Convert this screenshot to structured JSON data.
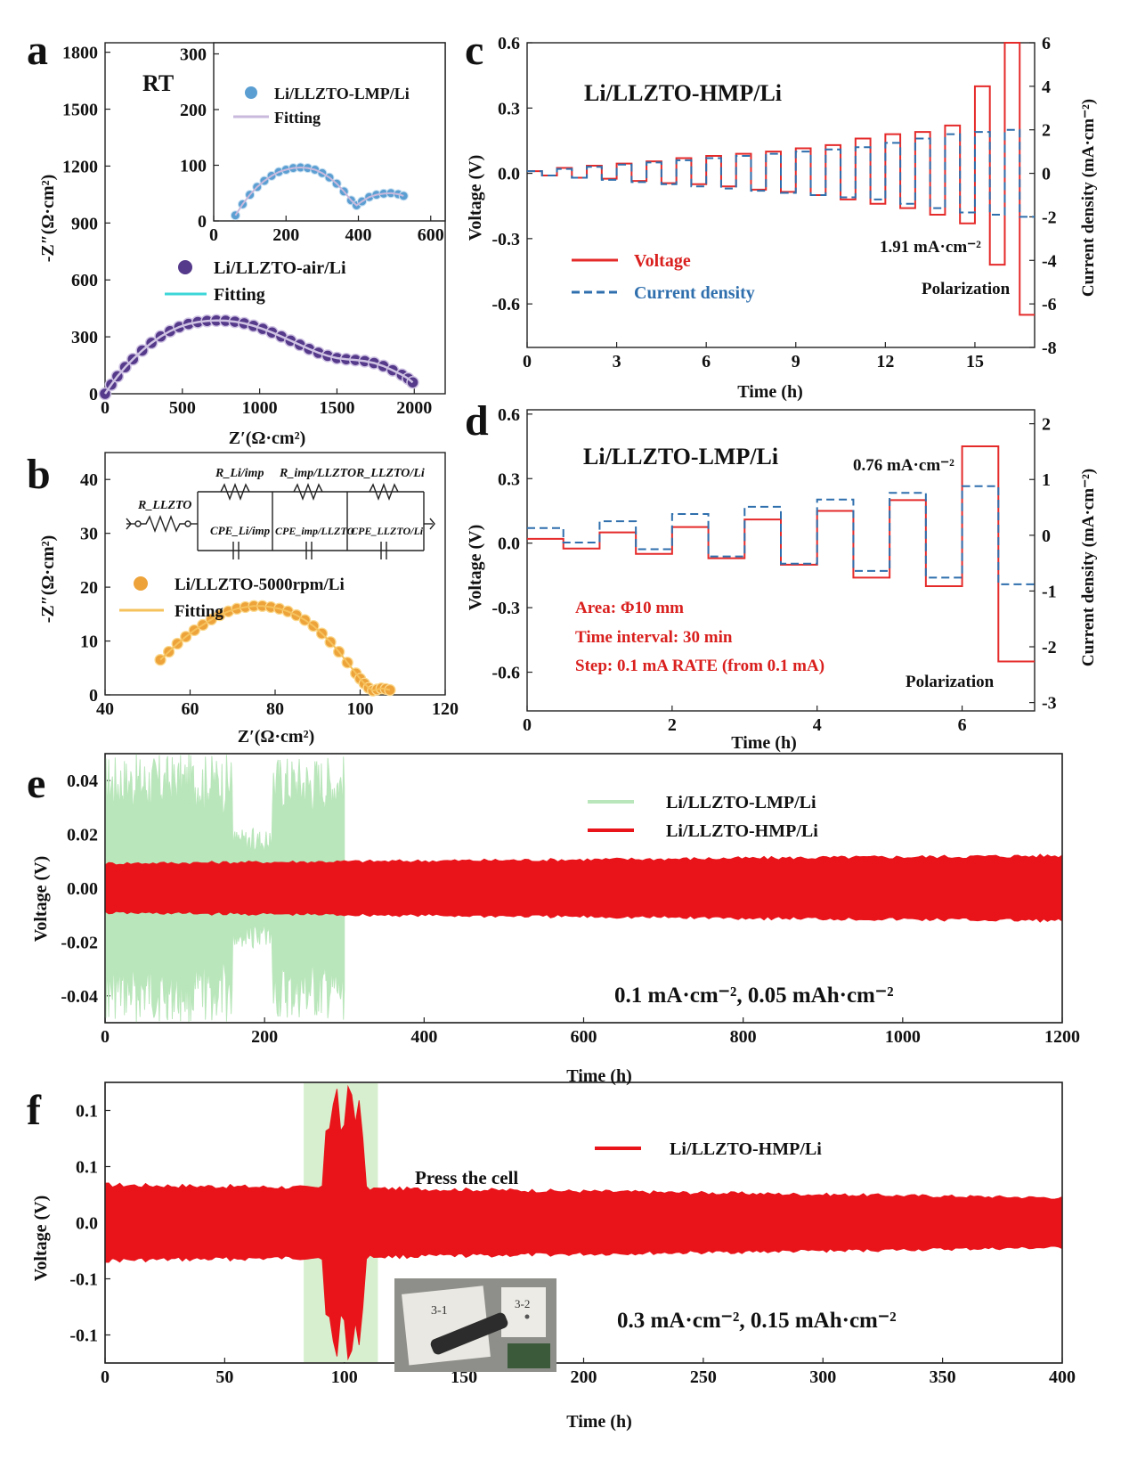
{
  "chart_data": [
    {
      "id": "a",
      "panel_label": "a",
      "type": "scatter",
      "xlabel": "Z′(Ω·cm²)",
      "ylabel": "-Z″(Ω·cm²)",
      "xlim": [
        0,
        2200
      ],
      "ylim": [
        0,
        1850
      ],
      "xticks": [
        0,
        500,
        1000,
        1500,
        2000
      ],
      "yticks": [
        0,
        300,
        600,
        900,
        1200,
        1500,
        1800
      ],
      "annotations": [
        "RT"
      ],
      "series": [
        {
          "name": "Li/LLZTO-air/Li",
          "kind": "points",
          "color": "#55398a",
          "x": [
            0,
            40,
            80,
            130,
            180,
            240,
            300,
            360,
            420,
            480,
            540,
            600,
            660,
            720,
            780,
            840,
            900,
            960,
            1020,
            1080,
            1140,
            1200,
            1260,
            1320,
            1380,
            1440,
            1500,
            1560,
            1620,
            1680,
            1740,
            1800,
            1860,
            1920,
            1960,
            1990
          ],
          "y": [
            0,
            48,
            92,
            140,
            182,
            228,
            268,
            302,
            330,
            352,
            368,
            378,
            384,
            386,
            385,
            380,
            371,
            358,
            342,
            323,
            302,
            280,
            258,
            236,
            216,
            200,
            188,
            182,
            178,
            172,
            162,
            146,
            124,
            100,
            80,
            60
          ]
        },
        {
          "name": "Fitting",
          "kind": "line",
          "color": "#3cd6d8",
          "x": [
            0,
            40,
            80,
            130,
            180,
            240,
            300,
            360,
            420,
            480,
            540,
            600,
            660,
            720,
            780,
            840,
            900,
            960,
            1020,
            1080,
            1140,
            1200,
            1260,
            1320,
            1380,
            1440,
            1500,
            1560,
            1620,
            1680,
            1740,
            1800,
            1860,
            1920,
            1960,
            1990
          ],
          "y": [
            0,
            48,
            92,
            140,
            182,
            228,
            268,
            302,
            330,
            352,
            368,
            378,
            384,
            386,
            385,
            380,
            371,
            358,
            342,
            323,
            302,
            280,
            258,
            236,
            216,
            200,
            188,
            182,
            178,
            172,
            162,
            146,
            124,
            100,
            80,
            60
          ]
        }
      ]
    },
    {
      "id": "a-inset",
      "type": "scatter",
      "xlim": [
        0,
        640
      ],
      "ylim": [
        0,
        320
      ],
      "xticks": [
        0,
        200,
        400,
        600
      ],
      "yticks": [
        0,
        100,
        200,
        300
      ],
      "series": [
        {
          "name": "Li/LLZTO-LMP/Li",
          "kind": "points",
          "color": "#5b9fd2",
          "x": [
            60,
            80,
            100,
            120,
            140,
            160,
            180,
            200,
            220,
            240,
            260,
            280,
            300,
            320,
            340,
            360,
            380,
            395,
            410,
            430,
            450,
            470,
            490,
            510,
            525
          ],
          "y": [
            10,
            30,
            47,
            61,
            72,
            81,
            88,
            92,
            95,
            96,
            95,
            92,
            86,
            78,
            67,
            53,
            37,
            28,
            35,
            43,
            47,
            49,
            50,
            48,
            45
          ]
        },
        {
          "name": "Fitting",
          "kind": "line",
          "color": "#c9b9dc",
          "x": [
            60,
            80,
            100,
            120,
            140,
            160,
            180,
            200,
            220,
            240,
            260,
            280,
            300,
            320,
            340,
            360,
            380,
            395,
            410,
            430,
            450,
            470,
            490,
            510,
            525
          ],
          "y": [
            10,
            30,
            47,
            61,
            72,
            81,
            88,
            92,
            95,
            96,
            95,
            92,
            86,
            78,
            67,
            53,
            37,
            28,
            35,
            43,
            47,
            49,
            50,
            48,
            45
          ]
        }
      ]
    },
    {
      "id": "b",
      "panel_label": "b",
      "type": "scatter",
      "xlabel": "Z′(Ω·cm²)",
      "ylabel": "-Z″(Ω·cm²)",
      "xlim": [
        40,
        120
      ],
      "ylim": [
        0,
        45
      ],
      "xticks": [
        40,
        60,
        80,
        100,
        120
      ],
      "yticks": [
        0,
        10,
        20,
        30,
        40
      ],
      "circuit_labels": [
        "R_LLZTO",
        "R_Li/imp",
        "CPE_Li/imp",
        "R_imp/LLZTO",
        "CPE_imp/LLZTO",
        "R_LLZTO/Li",
        "CPE_LLZTO/Li"
      ],
      "series": [
        {
          "name": "Li/LLZTO-5000rpm/Li",
          "kind": "points",
          "color": "#eda33a",
          "x": [
            53,
            55,
            57,
            59,
            61,
            63,
            65,
            67,
            69,
            71,
            73,
            75,
            77,
            79,
            81,
            83,
            85,
            87,
            89,
            91,
            93,
            95,
            97,
            99,
            100,
            101,
            102,
            103,
            104,
            105,
            106,
            107
          ],
          "y": [
            6.5,
            8.0,
            9.5,
            10.8,
            12.0,
            13.0,
            14.0,
            14.8,
            15.5,
            16.0,
            16.3,
            16.5,
            16.5,
            16.3,
            16.0,
            15.5,
            14.8,
            13.9,
            12.8,
            11.4,
            9.8,
            8.0,
            6.0,
            4.0,
            3.0,
            2.1,
            1.3,
            0.8,
            1.0,
            1.2,
            1.1,
            0.9
          ]
        },
        {
          "name": "Fitting",
          "kind": "line",
          "color": "#f6c25c",
          "x": [
            53,
            55,
            57,
            59,
            61,
            63,
            65,
            67,
            69,
            71,
            73,
            75,
            77,
            79,
            81,
            83,
            85,
            87,
            89,
            91,
            93,
            95,
            97,
            99,
            100,
            101,
            102,
            103,
            104,
            105,
            106,
            107
          ],
          "y": [
            6.5,
            8.0,
            9.5,
            10.8,
            12.0,
            13.0,
            14.0,
            14.8,
            15.5,
            16.0,
            16.3,
            16.5,
            16.5,
            16.3,
            16.0,
            15.5,
            14.8,
            13.9,
            12.8,
            11.4,
            9.8,
            8.0,
            6.0,
            4.0,
            3.0,
            2.1,
            1.3,
            0.8,
            1.0,
            1.2,
            1.1,
            0.9
          ]
        }
      ]
    },
    {
      "id": "c",
      "panel_label": "c",
      "type": "line",
      "title": "Li/LLZTO-HMP/Li",
      "xlabel": "Time (h)",
      "ylabel": "Voltage (V)",
      "y2label": "Current density (mA·cm⁻²)",
      "xlim": [
        0,
        17
      ],
      "ylim": [
        -0.8,
        0.6
      ],
      "y2lim": [
        -8,
        6
      ],
      "xticks": [
        0,
        3,
        6,
        9,
        12,
        15
      ],
      "yticks": [
        -0.6,
        -0.3,
        0.0,
        0.3,
        0.6
      ],
      "y2ticks": [
        -8,
        -6,
        -4,
        -2,
        0,
        2,
        4,
        6
      ],
      "annotations": [
        "1.91 mA·cm⁻²",
        "Polarization"
      ],
      "step_hours": 0.5,
      "series": [
        {
          "name": "Voltage",
          "kind": "step-voltage",
          "color": "#e52a2a",
          "axis": "left",
          "positive": [
            0.01,
            0.025,
            0.035,
            0.045,
            0.055,
            0.07,
            0.08,
            0.09,
            0.1,
            0.115,
            0.13,
            0.16,
            0.18,
            0.19,
            0.22,
            0.4,
            0.6
          ],
          "negative": [
            -0.01,
            -0.02,
            -0.025,
            -0.035,
            -0.045,
            -0.05,
            -0.06,
            -0.075,
            -0.085,
            -0.1,
            -0.12,
            -0.14,
            -0.16,
            -0.19,
            -0.23,
            -0.42,
            -0.65
          ]
        },
        {
          "name": "Current density",
          "kind": "step-current",
          "color": "#2f6fad",
          "axis": "right",
          "positive": [
            0.1,
            0.2,
            0.3,
            0.4,
            0.5,
            0.6,
            0.7,
            0.8,
            0.9,
            1.0,
            1.1,
            1.2,
            1.4,
            1.6,
            1.8,
            1.9,
            2.0
          ],
          "negative": [
            -0.1,
            -0.2,
            -0.3,
            -0.4,
            -0.5,
            -0.6,
            -0.7,
            -0.8,
            -0.9,
            -1.0,
            -1.1,
            -1.2,
            -1.4,
            -1.6,
            -1.8,
            -1.9,
            -2.0
          ]
        }
      ]
    },
    {
      "id": "d",
      "panel_label": "d",
      "type": "line",
      "title": "Li/LLZTO-LMP/Li",
      "xlabel": "Time (h)",
      "ylabel": "Voltage (V)",
      "y2label": "Current density (mA·cm⁻²)",
      "xlim": [
        0,
        7
      ],
      "ylim": [
        -0.78,
        0.62
      ],
      "y2lim": [
        -3.15,
        2.25
      ],
      "xticks": [
        0,
        2,
        4,
        6
      ],
      "yticks": [
        -0.6,
        -0.3,
        0.0,
        0.3,
        0.6
      ],
      "y2ticks": [
        -3,
        -2,
        -1,
        0,
        1,
        2
      ],
      "annotations": [
        "0.76 mA·cm⁻²",
        "Area: Φ10 mm",
        "Time interval: 30 min",
        "Step: 0.1 mA RATE (from 0.1 mA)",
        "Polarization"
      ],
      "step_hours": 0.5,
      "series": [
        {
          "name": "Voltage",
          "kind": "step-voltage",
          "color": "#e52a2a",
          "axis": "left",
          "positive": [
            0.02,
            0.05,
            0.075,
            0.11,
            0.15,
            0.2,
            0.45
          ],
          "negative": [
            -0.025,
            -0.05,
            -0.07,
            -0.1,
            -0.16,
            -0.2,
            -0.55
          ]
        },
        {
          "name": "Current density",
          "kind": "step-current",
          "color": "#2f6fad",
          "axis": "right",
          "positive": [
            0.13,
            0.25,
            0.38,
            0.51,
            0.64,
            0.76,
            0.88
          ],
          "negative": [
            -0.13,
            -0.25,
            -0.38,
            -0.51,
            -0.64,
            -0.76,
            -0.88
          ]
        }
      ]
    },
    {
      "id": "e",
      "panel_label": "e",
      "type": "area",
      "xlabel": "Time (h)",
      "ylabel": "Voltage (V)",
      "xlim": [
        0,
        1200
      ],
      "ylim": [
        -0.05,
        0.05
      ],
      "xticks": [
        0,
        200,
        400,
        600,
        800,
        1000,
        1200
      ],
      "yticks": [
        -0.04,
        -0.02,
        0.0,
        0.02,
        0.04
      ],
      "annotations": [
        "0.1 mA·cm⁻², 0.05 mAh·cm⁻²"
      ],
      "series": [
        {
          "name": "Li/LLZTO-LMP/Li",
          "color": "#b9e6ba",
          "t_end": 300,
          "amplitude_max": 0.05
        },
        {
          "name": "Li/LLZTO-HMP/Li",
          "color": "#e8141a",
          "t_end": 1200,
          "amplitude_start": 0.0095,
          "amplitude_end": 0.0125
        }
      ]
    },
    {
      "id": "f",
      "panel_label": "f",
      "type": "area",
      "xlabel": "Time (h)",
      "ylabel": "Voltage (V)",
      "xlim": [
        0,
        400
      ],
      "ylim": [
        -0.125,
        0.125
      ],
      "xticks": [
        0,
        50,
        100,
        150,
        200,
        250,
        300,
        350,
        400
      ],
      "yticks": [
        -0.1,
        -0.05,
        0.0,
        0.05,
        0.1
      ],
      "annotations": [
        "Press the cell",
        "0.3 mA·cm⁻², 0.15 mAh·cm⁻²"
      ],
      "highlight_range": [
        83,
        114
      ],
      "series": [
        {
          "name": "Li/LLZTO-HMP/Li",
          "color": "#e8141a",
          "t_end": 400,
          "amplitude_start": 0.035,
          "amplitude_end": 0.023
        }
      ]
    }
  ],
  "legends": {
    "a_inset": [
      "Li/LLZTO-LMP/Li",
      "Fitting"
    ],
    "a": [
      "Li/LLZTO-air/Li",
      "Fitting"
    ],
    "b": [
      "Li/LLZTO-5000rpm/Li",
      "Fitting"
    ],
    "c": [
      "Voltage",
      "Current density"
    ],
    "e": [
      "Li/LLZTO-LMP/Li",
      "Li/LLZTO-HMP/Li"
    ],
    "f": [
      "Li/LLZTO-HMP/Li"
    ]
  },
  "photo_labels": [
    "3-1",
    "3-2"
  ]
}
